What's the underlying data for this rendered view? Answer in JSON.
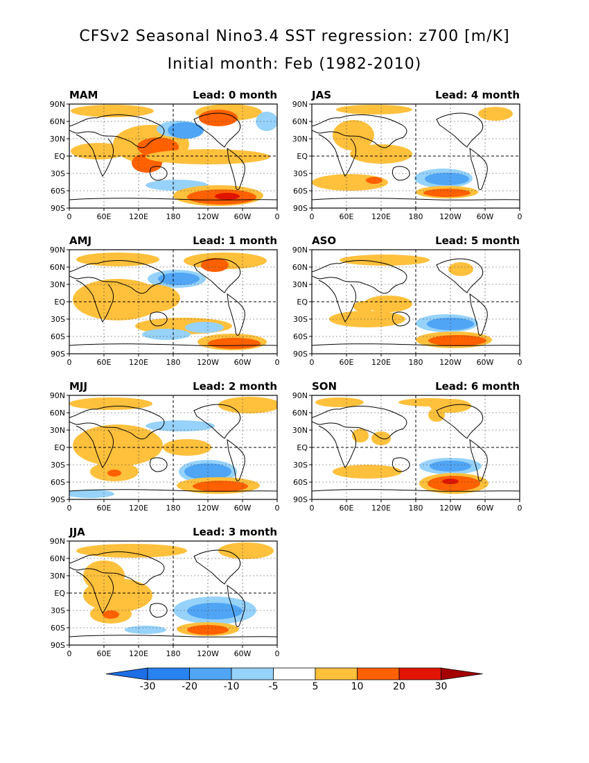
{
  "header": {
    "title": "CFSv2 Seasonal Nino3.4 SST regression: z700 [m/K]",
    "subtitle": "Initial month: Feb (1982-2010)"
  },
  "lat_labels": [
    "90N",
    "60N",
    "30N",
    "EQ",
    "30S",
    "60S",
    "90S"
  ],
  "lon_labels": [
    "0",
    "60E",
    "120E",
    "180",
    "120W",
    "60W",
    "0"
  ],
  "panels": [
    {
      "season": "MAM",
      "lead": "Lead: 0 month"
    },
    {
      "season": "JAS",
      "lead": "Lead: 4 month"
    },
    {
      "season": "AMJ",
      "lead": "Lead: 1 month"
    },
    {
      "season": "ASO",
      "lead": "Lead: 5 month"
    },
    {
      "season": "MJJ",
      "lead": "Lead: 2 month"
    },
    {
      "season": "SON",
      "lead": "Lead: 6 month"
    },
    {
      "season": "JJA",
      "lead": "Lead: 3 month"
    }
  ],
  "colorbar": {
    "labels": [
      "-30",
      "-20",
      "-10",
      "-5",
      "5",
      "10",
      "20",
      "30"
    ],
    "colors": [
      "#1e6ee6",
      "#2882f0",
      "#50a5f5",
      "#96d2fa",
      "#ffffff",
      "#ffc03c",
      "#ff6000",
      "#e11400",
      "#a50000"
    ]
  },
  "colors": {
    "orange_light": "#ffc03c",
    "orange_dark": "#ff6000",
    "red": "#e11400",
    "blue_light": "#96d2fa",
    "blue_mid": "#50a5f5",
    "blue_dark": "#2882f0"
  }
}
